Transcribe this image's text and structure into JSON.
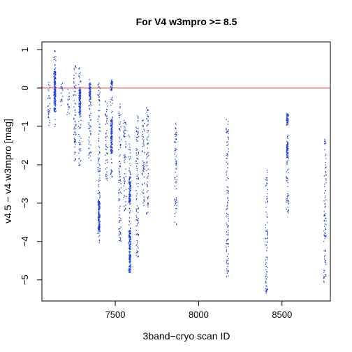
{
  "chart_data": {
    "type": "scatter",
    "title": "For V4 w3mpro >= 8.5",
    "xlabel": "3band−cryo scan ID",
    "ylabel": "v4.5 − v4 w3mpro [mag]",
    "xlim": [
      7060,
      8790
    ],
    "ylim": [
      -5.55,
      1.2
    ],
    "xticks": [
      7500,
      8000,
      8500
    ],
    "xtick_labels": [
      "7500",
      "8000",
      "8500"
    ],
    "yticks": [
      1,
      0,
      -1,
      -2,
      -3,
      -4,
      -5
    ],
    "ytick_labels": [
      "1",
      "0",
      "−1",
      "−2",
      "−3",
      "−4",
      "−5"
    ],
    "grid": false,
    "legend": "none",
    "reference_line": {
      "y": 0,
      "color": "#ff5a5a"
    },
    "point_color": "#1f3fd6",
    "clusters": [
      {
        "x": 7100,
        "y_min": -1.0,
        "y_max": 0.3
      },
      {
        "x": 7135,
        "y_min": -1.0,
        "y_max": 1.0
      },
      {
        "x": 7175,
        "y_min": -0.5,
        "y_max": 0.2
      },
      {
        "x": 7215,
        "y_min": -0.7,
        "y_max": 0.0
      },
      {
        "x": 7255,
        "y_min": -1.9,
        "y_max": 0.65
      },
      {
        "x": 7285,
        "y_min": -2.1,
        "y_max": 0.55
      },
      {
        "x": 7345,
        "y_min": -1.9,
        "y_max": 0.25
      },
      {
        "x": 7400,
        "y_min": -4.1,
        "y_max": 0.15
      },
      {
        "x": 7445,
        "y_min": -2.4,
        "y_max": -0.3
      },
      {
        "x": 7475,
        "y_min": -2.4,
        "y_max": 0.25
      },
      {
        "x": 7525,
        "y_min": -4.1,
        "y_max": -0.4
      },
      {
        "x": 7555,
        "y_min": -3.2,
        "y_max": -0.8
      },
      {
        "x": 7585,
        "y_min": -4.8,
        "y_max": -1.2
      },
      {
        "x": 7630,
        "y_min": -4.5,
        "y_max": -0.6
      },
      {
        "x": 7665,
        "y_min": -3.1,
        "y_max": -0.8
      },
      {
        "x": 7690,
        "y_min": -3.3,
        "y_max": -0.5
      },
      {
        "x": 7860,
        "y_min": -3.6,
        "y_max": -0.9
      },
      {
        "x": 8170,
        "y_min": -4.95,
        "y_max": -0.8
      },
      {
        "x": 8405,
        "y_min": -5.35,
        "y_max": -2.1
      },
      {
        "x": 8530,
        "y_min": -3.3,
        "y_max": -0.6
      },
      {
        "x": 8755,
        "y_min": -5.05,
        "y_max": -1.3
      }
    ],
    "dense_runs": [
      {
        "x": 7135,
        "y_min": -0.6,
        "y_max": 0.45
      },
      {
        "x": 7285,
        "y_min": -0.7,
        "y_max": 0.0
      },
      {
        "x": 7345,
        "y_min": -0.3,
        "y_max": 0.15
      },
      {
        "x": 7400,
        "y_min": -3.7,
        "y_max": -2.9
      },
      {
        "x": 7475,
        "y_min": -1.7,
        "y_max": -0.8
      },
      {
        "x": 7475,
        "y_min": -0.05,
        "y_max": 0.2
      },
      {
        "x": 7585,
        "y_min": -4.8,
        "y_max": -3.7
      },
      {
        "x": 7585,
        "y_min": -3.0,
        "y_max": -2.3
      },
      {
        "x": 8530,
        "y_min": -1.8,
        "y_max": -1.4
      },
      {
        "x": 8530,
        "y_min": -0.95,
        "y_max": -0.65
      }
    ]
  }
}
